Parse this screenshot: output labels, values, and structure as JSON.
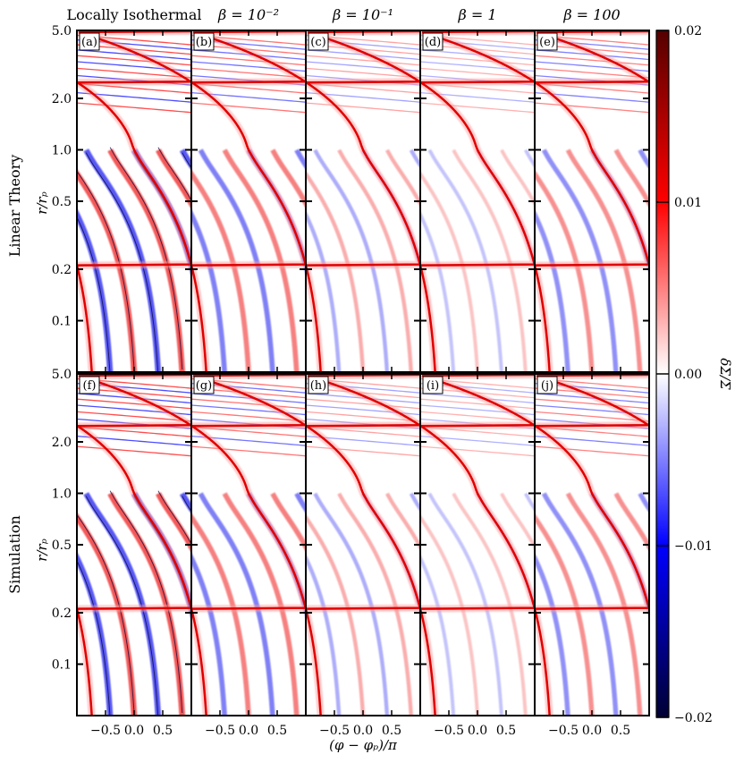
{
  "chart_data": {
    "type": "heatmap",
    "column_titles": [
      "Locally Isothermal",
      "β = 10⁻²",
      "β = 10⁻¹",
      "β = 1",
      "β = 100"
    ],
    "row_labels": [
      "Linear Theory",
      "Simulation"
    ],
    "panel_labels": [
      "(a)",
      "(b)",
      "(c)",
      "(d)",
      "(e)",
      "(f)",
      "(g)",
      "(h)",
      "(i)",
      "(j)"
    ],
    "ylabel": "r/rₚ",
    "xlabel": "(φ − φₚ)/π",
    "colorbar_label": "δΣ/Σ",
    "xlim": [
      -1,
      1
    ],
    "ylim": [
      0.05,
      5.0
    ],
    "yscale": "log",
    "xticks": [
      -0.5,
      0.0,
      0.5
    ],
    "xtick_labels": [
      "−0.5",
      "0.0",
      "0.5"
    ],
    "yticks": [
      0.1,
      0.2,
      0.5,
      1.0,
      2.0,
      5.0
    ],
    "ytick_labels": [
      "0.1",
      "0.2",
      "0.5",
      "1.0",
      "2.0",
      "5.0"
    ],
    "clim": [
      -0.02,
      0.02
    ],
    "cbar_ticks": [
      -0.02,
      -0.01,
      0.0,
      0.01,
      0.02
    ],
    "cbar_tick_labels": [
      "−0.02",
      "−0.01",
      "0.00",
      "0.01",
      "0.02"
    ],
    "colormap": [
      "#000033",
      "#0000ff",
      "#ffffff",
      "#ff0000",
      "#550000"
    ],
    "panel_outer_strength": [
      1.0,
      0.7,
      0.35,
      0.25,
      0.6,
      1.0,
      0.7,
      0.35,
      0.25,
      0.6
    ],
    "panel_inner_strength": [
      1.0,
      0.7,
      0.3,
      0.15,
      0.6,
      1.0,
      0.7,
      0.3,
      0.15,
      0.6
    ]
  }
}
